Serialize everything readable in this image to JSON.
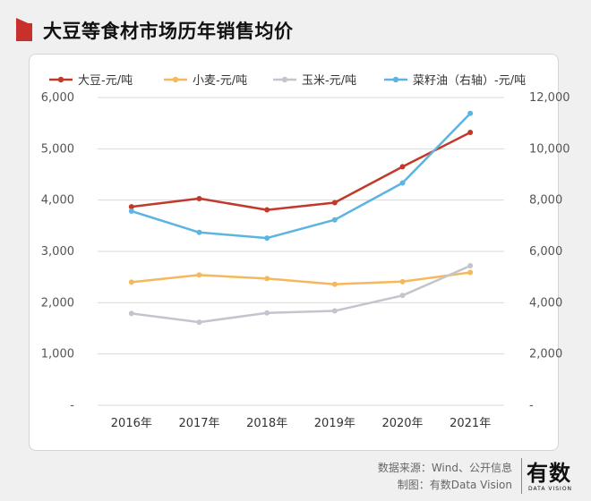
{
  "title": "大豆等食材市场历年销售均价",
  "source": "数据来源：Wind、公开信息",
  "made_by": "制图：有数Data Vision",
  "logo": {
    "text": "有数",
    "sub": "DATA VISION"
  },
  "colors": {
    "accent": "#c9302c",
    "soybean": "#c0392b",
    "wheat": "#f5b85c",
    "corn": "#c4c4cc",
    "rapeseed": "#5db4e0"
  },
  "chart_data": {
    "type": "line",
    "title": "大豆等食材市场历年销售均价",
    "categories": [
      "2016年",
      "2017年",
      "2018年",
      "2019年",
      "2020年",
      "2021年"
    ],
    "y_left": {
      "range": [
        0,
        6000
      ],
      "ticks": [
        "-",
        "1,000",
        "2,000",
        "3,000",
        "4,000",
        "5,000",
        "6,000"
      ]
    },
    "y_right": {
      "range": [
        0,
        12000
      ],
      "ticks": [
        "-",
        "2,000",
        "4,000",
        "6,000",
        "8,000",
        "10,000",
        "12,000"
      ]
    },
    "grid": true,
    "legend_position": "top",
    "series": [
      {
        "name": "大豆-元/吨",
        "axis": "left",
        "color": "#c0392b",
        "values": [
          3870,
          4030,
          3810,
          3950,
          4650,
          5320
        ]
      },
      {
        "name": "小麦-元/吨",
        "axis": "left",
        "color": "#f5b85c",
        "values": [
          2400,
          2540,
          2470,
          2360,
          2410,
          2590
        ]
      },
      {
        "name": "玉米-元/吨",
        "axis": "left",
        "color": "#c4c4cc",
        "values": [
          1790,
          1620,
          1800,
          1840,
          2140,
          2720
        ]
      },
      {
        "name": "菜籽油（右轴）-元/吨",
        "axis": "right",
        "color": "#5db4e0",
        "values": [
          7570,
          6740,
          6520,
          7230,
          8670,
          11380
        ]
      }
    ]
  }
}
